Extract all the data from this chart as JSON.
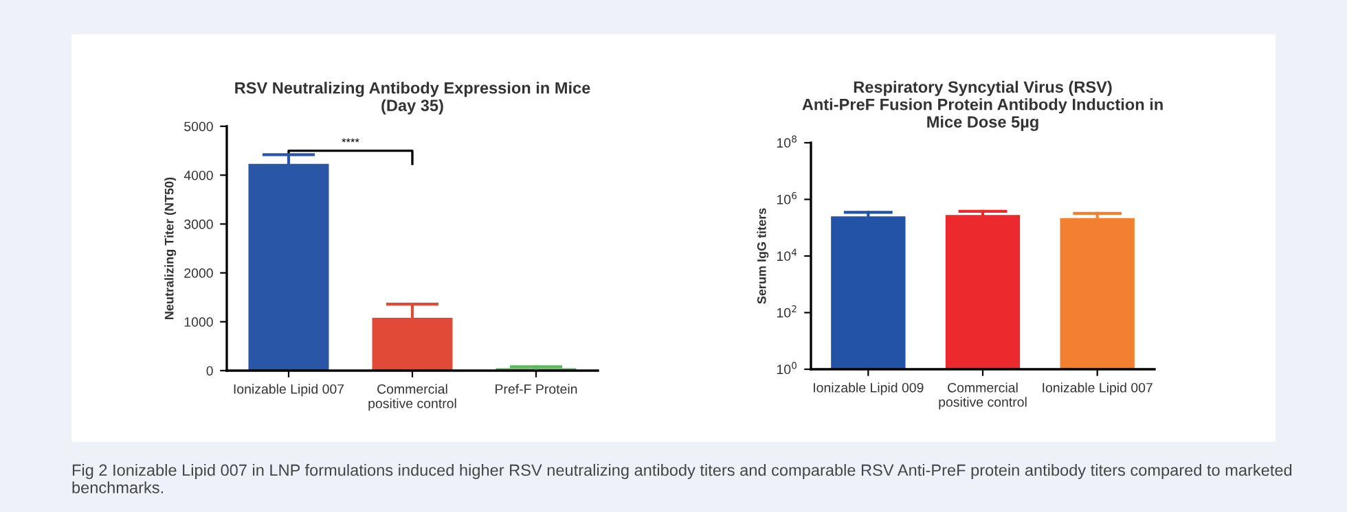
{
  "chart_data": [
    {
      "type": "bar",
      "title": "RSV Neutralizing Antibody Expression in Mice\n(Day 35)",
      "ylabel": "Neutralizing Titer (NT50)",
      "categories": [
        "Ionizable Lipid 007",
        "Commercial\npositive control",
        "Pref-F Protein"
      ],
      "values": [
        4230,
        1080,
        50
      ],
      "colors": [
        "#2a56a8",
        "#e04a36",
        "#5cb85c"
      ],
      "errors": [
        [
          4230,
          4420
        ],
        [
          1080,
          1360
        ],
        [
          50,
          80
        ]
      ],
      "ylim": [
        0,
        5000
      ],
      "yticks": [
        0,
        1000,
        2000,
        3000,
        4000,
        5000
      ],
      "grid": false,
      "annotations": [
        "****",
        "Fig 2 Ionizable Lipid 007 in LNP formulations induced higher RSV neutralizing antibody titers and comparable RSV Anti-PreF protein antibody titers compared to marketed benchmarks."
      ]
    },
    {
      "type": "bar",
      "title": "Respiratory Syncytial Virus (RSV)\nAnti-PreF Fusion Protein Antibody Induction in\nMice Dose 5µg",
      "ylabel": "Serum IgG titers",
      "categories": [
        "Ionizable Lipid 009",
        "Commercial\npositive control",
        "Ionizable Lipid 007"
      ],
      "values": [
        250000,
        280000,
        220000
      ],
      "colors": [
        "#2353a6",
        "#ec2a2e",
        "#f38030"
      ],
      "errors": [
        [
          250000,
          350000
        ],
        [
          280000,
          380000
        ],
        [
          220000,
          320000
        ]
      ],
      "log": "y",
      "ylim": [
        1,
        100000000
      ],
      "yticks": [
        {
          "value": 1,
          "label": "10$^{0}$"
        },
        {
          "value": 100,
          "label": "10$^{2}$"
        },
        {
          "value": 10000,
          "label": "10$^{4}$"
        },
        {
          "value": 1000000,
          "label": "10$^{6}$"
        },
        {
          "value": 100000000,
          "label": "10$^{8}$"
        }
      ],
      "grid": false
    }
  ]
}
